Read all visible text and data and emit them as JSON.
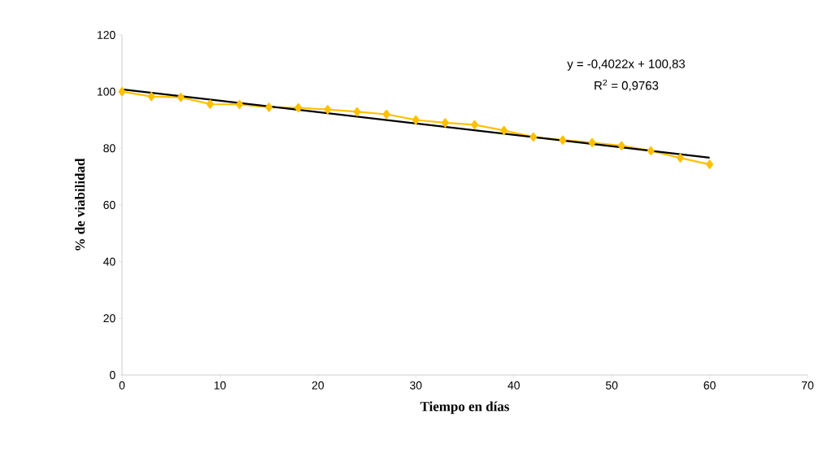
{
  "chart_data": {
    "type": "line",
    "xlabel": "Tiempo en días",
    "ylabel": "% de viabilidad",
    "x": [
      0,
      3,
      6,
      9,
      12,
      15,
      18,
      21,
      24,
      27,
      30,
      33,
      36,
      39,
      42,
      45,
      48,
      51,
      54,
      57,
      60
    ],
    "series": [
      {
        "color": "#ffc000",
        "marker": "diamond",
        "values": [
          100,
          98.3,
          98,
          95.6,
          95.5,
          94.5,
          94.3,
          93.7,
          92.9,
          92,
          90,
          89,
          88.3,
          86.3,
          84,
          82.9,
          82,
          80.9,
          79.1,
          76.6,
          74.3
        ]
      },
      {
        "type": "line",
        "color": "#000000",
        "marker": "none",
        "x": [
          0,
          60
        ],
        "values": [
          100.8,
          76.7
        ]
      }
    ],
    "annotations": [
      "y = -0,4022x + 100,83",
      "R$^{2}$ = 0,9763"
    ],
    "xlim": [
      0,
      70
    ],
    "xticks": [
      0,
      10,
      20,
      30,
      40,
      50,
      60,
      70
    ],
    "ylim": [
      0,
      120
    ],
    "yticks": [
      0,
      20,
      40,
      60,
      80,
      100,
      120
    ],
    "grid": false
  }
}
